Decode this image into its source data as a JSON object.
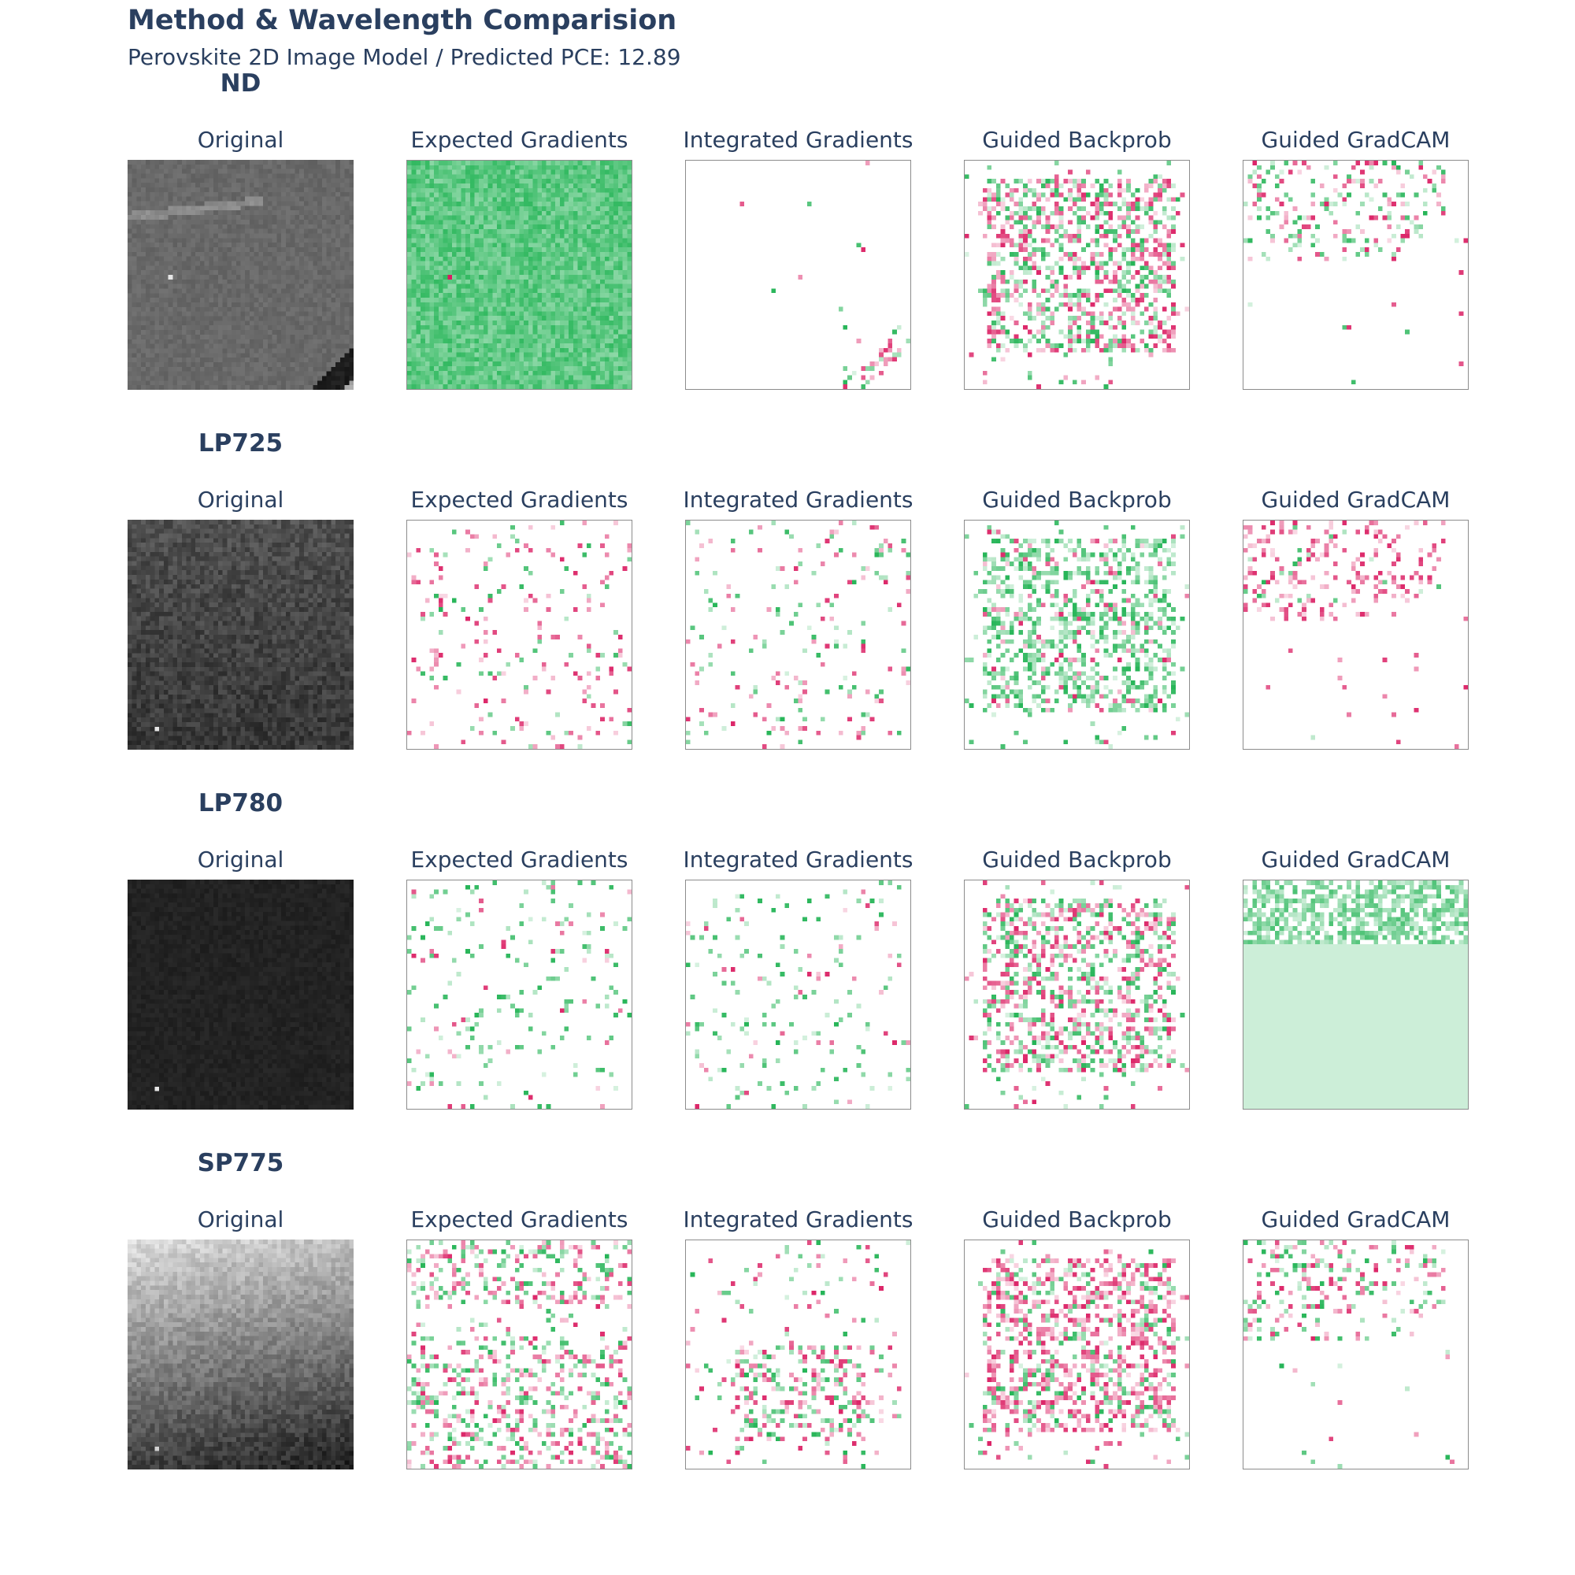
{
  "title": "Method & Wavelength Comparision",
  "subtitle": "Perovskite 2D Image Model / Predicted PCE: 12.89",
  "chart_data": {
    "type": "heatmap",
    "title": "Method & Wavelength Comparision",
    "subtitle": "Perovskite 2D Image Model / Predicted PCE: 12.89",
    "rows": [
      "ND",
      "LP725",
      "LP780",
      "SP775"
    ],
    "columns": [
      "Original",
      "Expected Gradients",
      "Integrated Gradients",
      "Guided Backprob",
      "Guided GradCAM"
    ],
    "original_colormap": "gray",
    "attribution_colormap": "PiYG (pink = negative, white = zero, green = positive)",
    "colors": {
      "negative": "#d6004e",
      "zero": "#ffffff",
      "positive": "#00a83a",
      "text": "#2a3f5f",
      "frame": "#8c8c8c"
    },
    "panel_grid_resolution": 50
  }
}
